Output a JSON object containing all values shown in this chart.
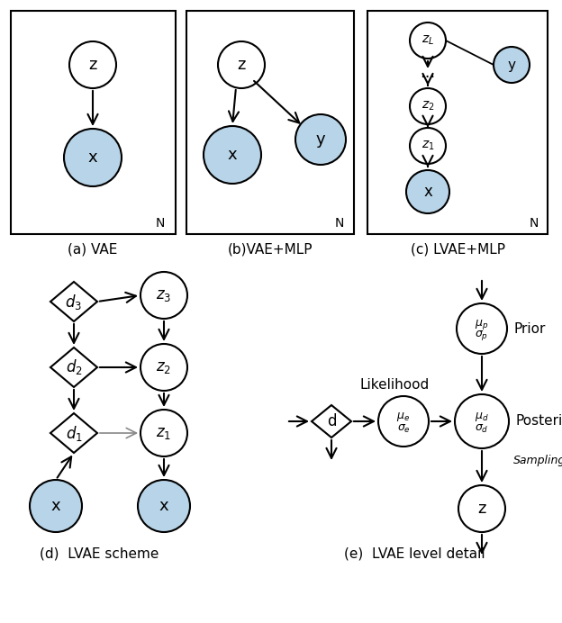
{
  "bg_color": "#ffffff",
  "node_white": "#ffffff",
  "node_blue": "#b8d4e8",
  "fig_width": 6.24,
  "fig_height": 6.92,
  "captions": {
    "a": "(a) VAE",
    "b": "(b)VAE+MLP",
    "c": "(c) LVAE+MLP",
    "d": "(d)  LVAE scheme",
    "e": "(e)  LVAE level detail"
  }
}
